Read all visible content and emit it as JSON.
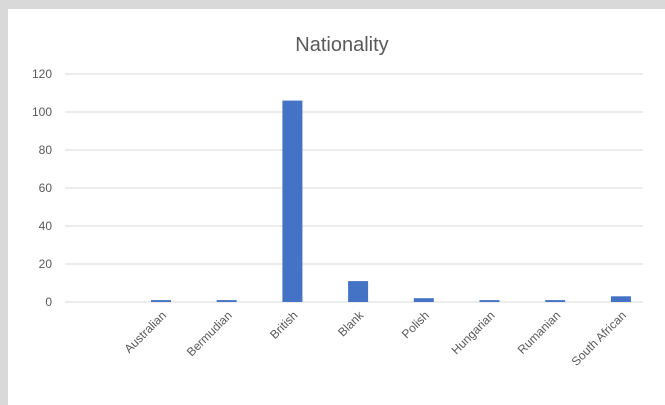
{
  "chart_data": {
    "type": "bar",
    "title": "Nationality",
    "xlabel": "",
    "ylabel": "",
    "categories": [
      "Australian",
      "Bermudian",
      "British",
      "Blank",
      "Polish",
      "Hungarian",
      "Rumanian",
      "South African"
    ],
    "values": [
      1,
      1,
      106,
      11,
      2,
      1,
      1,
      3
    ],
    "ylim": [
      0,
      120
    ],
    "yticks": [
      0,
      20,
      40,
      60,
      80,
      100,
      120
    ],
    "grid": true,
    "legend": "none",
    "bar_color": "#4472c4"
  }
}
